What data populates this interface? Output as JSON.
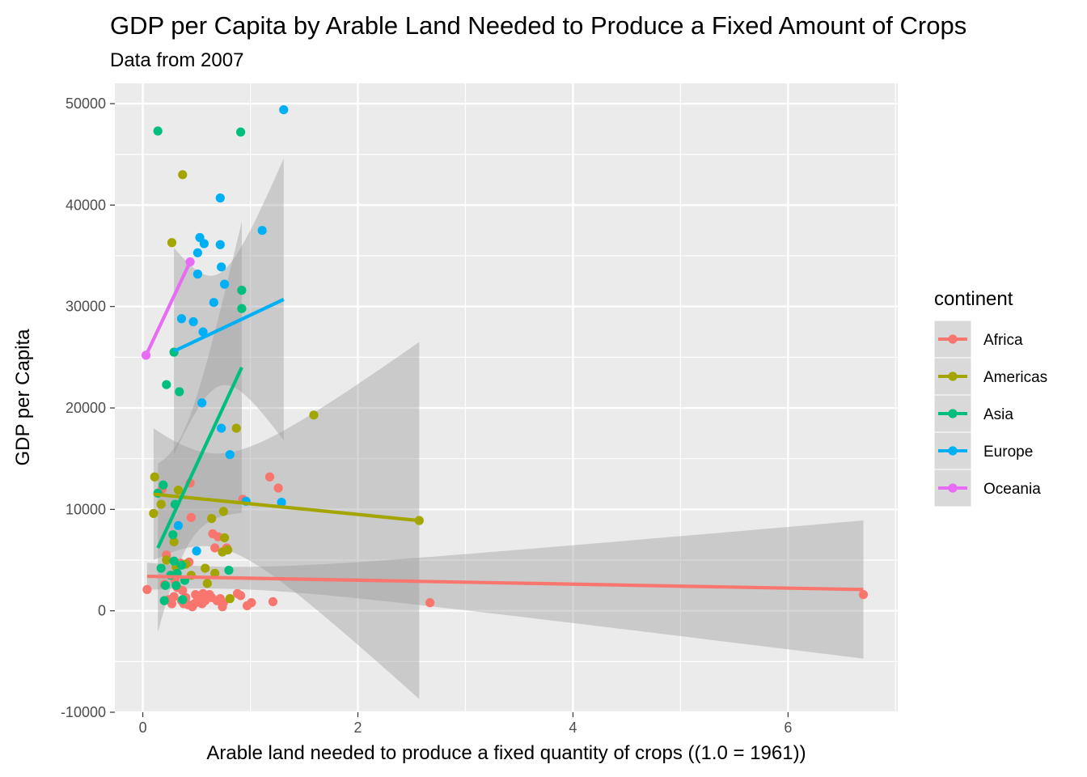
{
  "chart_data": {
    "type": "scatter",
    "title": "GDP per Capita by Arable Land Needed to Produce a Fixed Amount of Crops",
    "subtitle": "Data from 2007",
    "xlabel": "Arable land needed to produce a fixed quantity of crops ((1.0 = 1961))",
    "ylabel": "GDP per Capita",
    "xlim": [
      -0.26,
      7.02
    ],
    "ylim": [
      -10000,
      52000
    ],
    "x_ticks": [
      0,
      2,
      4,
      6
    ],
    "x_tick_labels": [
      "0",
      "2",
      "4",
      "6"
    ],
    "y_ticks": [
      -10000,
      0,
      10000,
      20000,
      30000,
      40000,
      50000
    ],
    "y_tick_labels": [
      "-10000",
      "0",
      "10000",
      "20000",
      "30000",
      "40000",
      "50000"
    ],
    "grid": true,
    "legend": {
      "title": "continent",
      "position": "right"
    },
    "colors": {
      "panel_background": "#ebebeb",
      "grid": "#ffffff",
      "ribbon": "#999999"
    },
    "series": [
      {
        "name": "Africa",
        "color": "#F8766D",
        "points": [
          [
            0.04,
            2100
          ],
          [
            0.18,
            12000
          ],
          [
            0.2,
            2600
          ],
          [
            0.22,
            5500
          ],
          [
            0.24,
            1100
          ],
          [
            0.27,
            700
          ],
          [
            0.29,
            1400
          ],
          [
            0.3,
            3000
          ],
          [
            0.32,
            2300
          ],
          [
            0.33,
            4500
          ],
          [
            0.35,
            4700
          ],
          [
            0.36,
            1000
          ],
          [
            0.37,
            2000
          ],
          [
            0.38,
            700
          ],
          [
            0.4,
            1300
          ],
          [
            0.42,
            600
          ],
          [
            0.43,
            4800
          ],
          [
            0.44,
            12600
          ],
          [
            0.45,
            9200
          ],
          [
            0.46,
            400
          ],
          [
            0.48,
            700
          ],
          [
            0.49,
            1600
          ],
          [
            0.51,
            1000
          ],
          [
            0.53,
            1400
          ],
          [
            0.55,
            700
          ],
          [
            0.56,
            1700
          ],
          [
            0.58,
            1000
          ],
          [
            0.6,
            1300
          ],
          [
            0.62,
            1600
          ],
          [
            0.64,
            1300
          ],
          [
            0.65,
            7600
          ],
          [
            0.67,
            6200
          ],
          [
            0.69,
            1000
          ],
          [
            0.7,
            7300
          ],
          [
            0.72,
            1200
          ],
          [
            0.74,
            400
          ],
          [
            0.75,
            800
          ],
          [
            0.78,
            6200
          ],
          [
            0.88,
            1700
          ],
          [
            0.91,
            1500
          ],
          [
            0.93,
            11000
          ],
          [
            0.97,
            500
          ],
          [
            1.01,
            800
          ],
          [
            1.18,
            13200
          ],
          [
            1.21,
            900
          ],
          [
            1.26,
            12100
          ],
          [
            2.67,
            800
          ],
          [
            6.7,
            1600
          ]
        ],
        "fit": {
          "x": [
            0.04,
            6.7
          ],
          "y": [
            3400,
            2100
          ]
        }
      },
      {
        "name": "Americas",
        "color": "#A3A500",
        "points": [
          [
            0.1,
            9600
          ],
          [
            0.11,
            13200
          ],
          [
            0.17,
            10500
          ],
          [
            0.22,
            5000
          ],
          [
            0.27,
            36300
          ],
          [
            0.29,
            6800
          ],
          [
            0.31,
            4300
          ],
          [
            0.33,
            11900
          ],
          [
            0.37,
            43000
          ],
          [
            0.4,
            4600
          ],
          [
            0.45,
            3500
          ],
          [
            0.58,
            4200
          ],
          [
            0.6,
            2700
          ],
          [
            0.64,
            9100
          ],
          [
            0.67,
            3700
          ],
          [
            0.74,
            5800
          ],
          [
            0.75,
            9800
          ],
          [
            0.76,
            7200
          ],
          [
            0.79,
            6000
          ],
          [
            0.81,
            1200
          ],
          [
            0.87,
            18000
          ],
          [
            1.59,
            19300
          ],
          [
            2.57,
            8900
          ]
        ],
        "fit": {
          "x": [
            0.1,
            2.57
          ],
          "y": [
            11500,
            8900
          ]
        }
      },
      {
        "name": "Asia",
        "color": "#00BF7D",
        "points": [
          [
            0.14,
            47300
          ],
          [
            0.14,
            11600
          ],
          [
            0.17,
            4200
          ],
          [
            0.19,
            12400
          ],
          [
            0.2,
            1000
          ],
          [
            0.21,
            2500
          ],
          [
            0.22,
            22300
          ],
          [
            0.26,
            3500
          ],
          [
            0.28,
            7500
          ],
          [
            0.29,
            25500
          ],
          [
            0.29,
            4900
          ],
          [
            0.3,
            10500
          ],
          [
            0.31,
            2500
          ],
          [
            0.32,
            3700
          ],
          [
            0.34,
            21600
          ],
          [
            0.36,
            4500
          ],
          [
            0.37,
            1100
          ],
          [
            0.39,
            3000
          ],
          [
            0.8,
            4000
          ],
          [
            0.91,
            47200
          ],
          [
            0.92,
            31600
          ],
          [
            0.92,
            29800
          ]
        ],
        "fit": {
          "x": [
            0.14,
            0.92
          ],
          "y": [
            6200,
            24000
          ]
        }
      },
      {
        "name": "Europe",
        "color": "#00B0F6",
        "points": [
          [
            0.33,
            8400
          ],
          [
            0.36,
            28800
          ],
          [
            0.47,
            28500
          ],
          [
            0.5,
            5900
          ],
          [
            0.51,
            35300
          ],
          [
            0.51,
            33200
          ],
          [
            0.53,
            36800
          ],
          [
            0.55,
            20500
          ],
          [
            0.56,
            27500
          ],
          [
            0.57,
            36200
          ],
          [
            0.66,
            30400
          ],
          [
            0.72,
            40700
          ],
          [
            0.72,
            36100
          ],
          [
            0.73,
            33900
          ],
          [
            0.73,
            18000
          ],
          [
            0.76,
            32200
          ],
          [
            0.81,
            15400
          ],
          [
            0.96,
            10800
          ],
          [
            1.11,
            37500
          ],
          [
            1.29,
            10700
          ],
          [
            1.31,
            49400
          ]
        ],
        "fit": {
          "x": [
            0.29,
            1.31
          ],
          "y": [
            25600,
            30700
          ]
        }
      },
      {
        "name": "Oceania",
        "color": "#E76BF3",
        "points": [
          [
            0.03,
            25200
          ],
          [
            0.44,
            34400
          ]
        ],
        "fit": {
          "x": [
            0.03,
            0.44
          ],
          "y": [
            25200,
            34400
          ]
        }
      }
    ]
  }
}
